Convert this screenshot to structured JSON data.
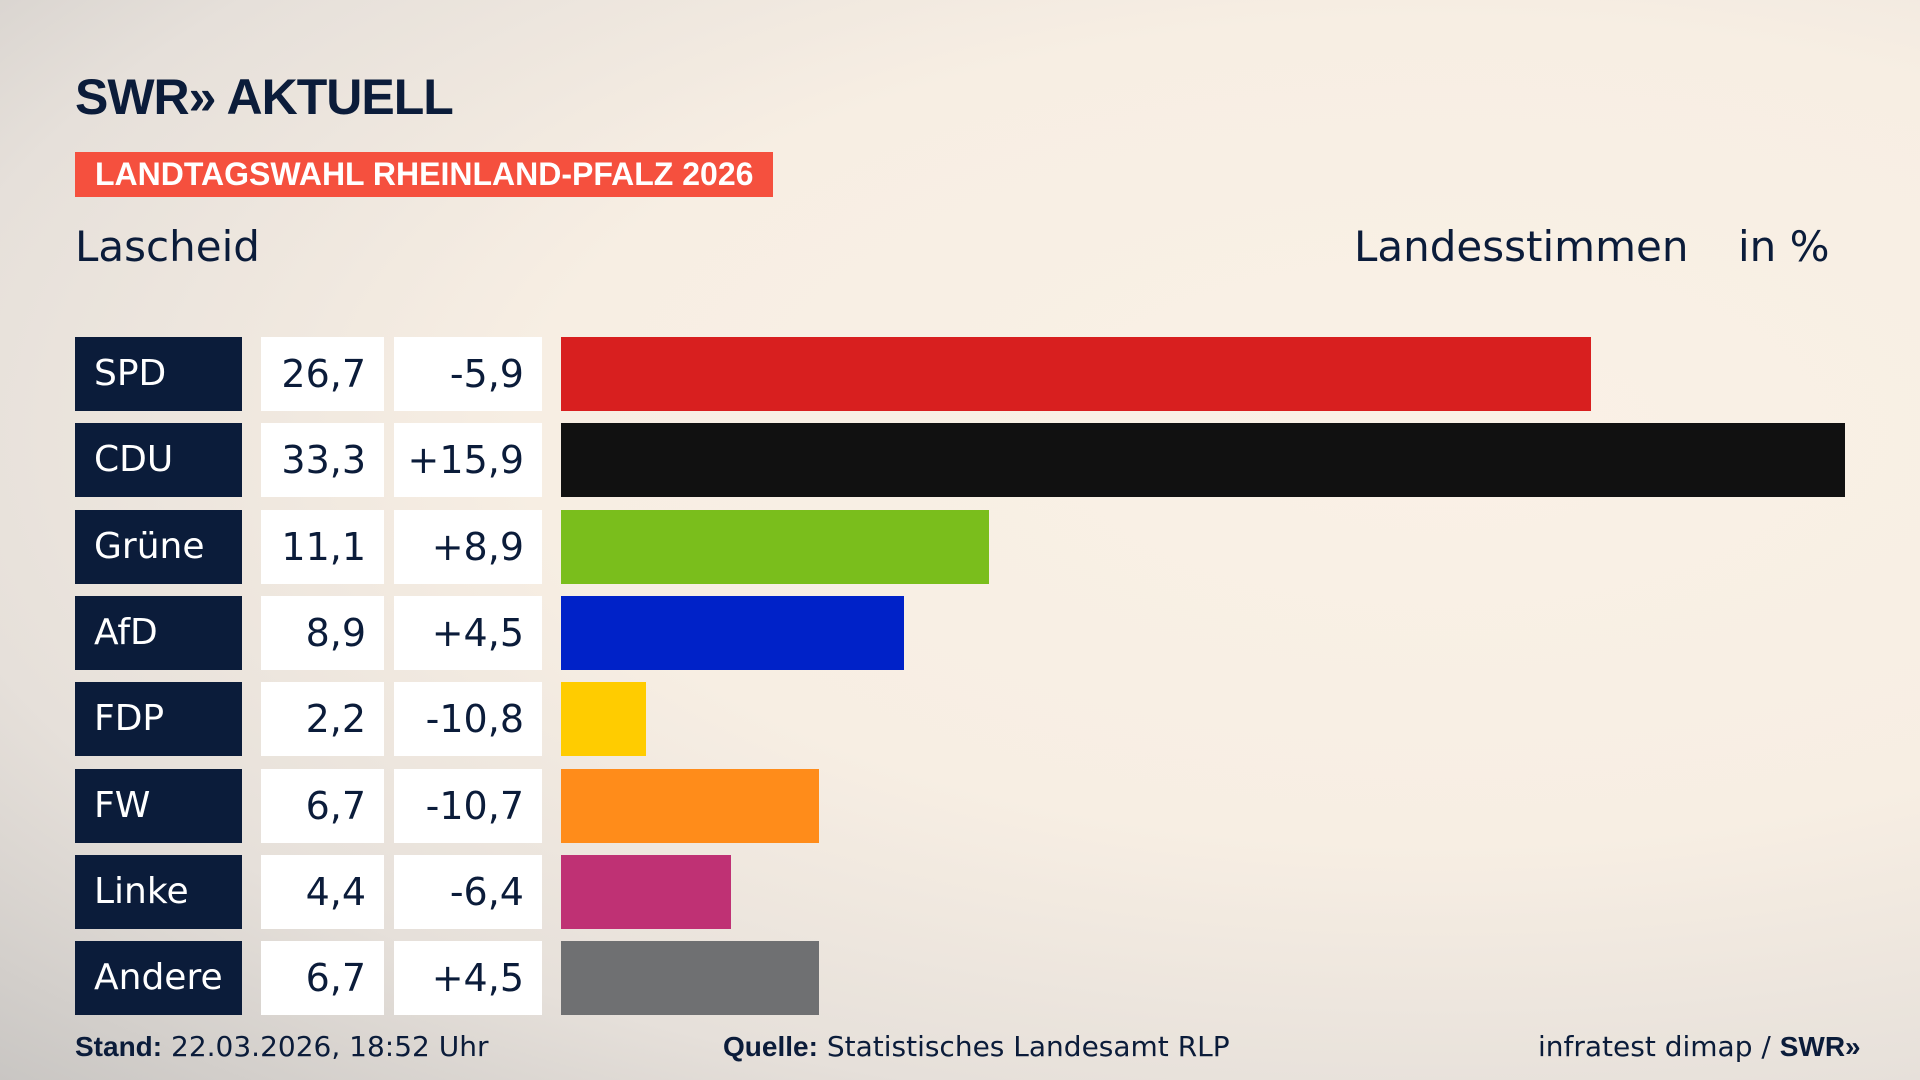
{
  "logo": "SWR» AKTUELL",
  "banner": "LANDTAGSWAHL RHEINLAND-PFALZ 2026",
  "location": "Lascheid",
  "header_measure": "Landesstimmen",
  "header_unit": "in %",
  "chart_data": {
    "type": "bar",
    "orientation": "horizontal",
    "categories": [
      "SPD",
      "CDU",
      "Grüne",
      "AfD",
      "FDP",
      "FW",
      "Linke",
      "Andere"
    ],
    "values": [
      26.7,
      33.3,
      11.1,
      8.9,
      2.2,
      6.7,
      4.4,
      6.7
    ],
    "value_labels": [
      "26,7",
      "33,3",
      "11,1",
      "8,9",
      "2,2",
      "6,7",
      "4,4",
      "6,7"
    ],
    "change_labels": [
      "-5,9",
      "+15,9",
      "+8,9",
      "+4,5",
      "-10,8",
      "-10,7",
      "-6,4",
      "+4,5"
    ],
    "colors": [
      "#d81f1f",
      "#111111",
      "#7abe1c",
      "#0022c8",
      "#ffcc00",
      "#ff8c1a",
      "#bf3174",
      "#6f7072"
    ],
    "xlim": [
      0,
      33.3
    ]
  },
  "footer": {
    "stand_label": "Stand:",
    "stand_value": "22.03.2026, 18:52 Uhr",
    "source_label": "Quelle:",
    "source_value": "Statistisches Landesamt RLP",
    "credit": "infratest dimap /",
    "credit_logo": "SWR»"
  }
}
